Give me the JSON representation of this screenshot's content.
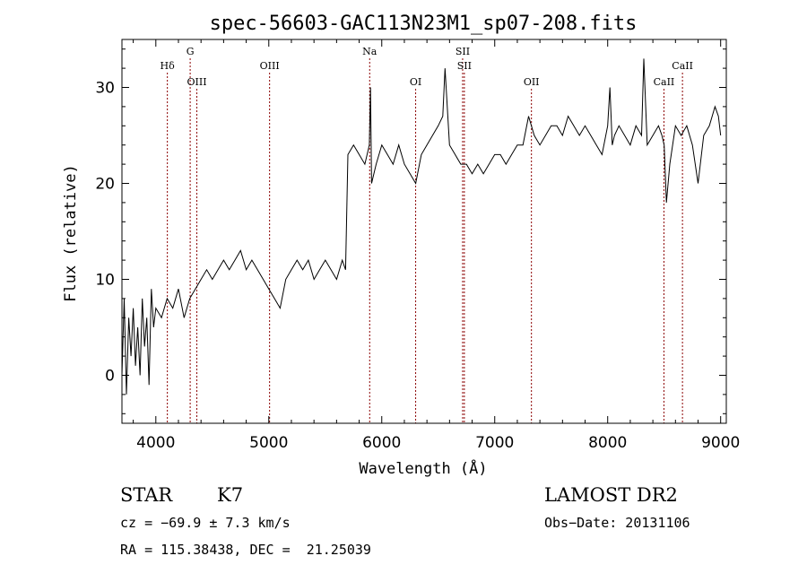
{
  "chart_data": {
    "type": "line",
    "title": "spec-56603-GAC113N23M1_sp07-208.fits",
    "xlabel": "Wavelength (Å)",
    "ylabel": "Flux (relative)",
    "xlim": [
      3700,
      9050
    ],
    "ylim": [
      -5,
      35
    ],
    "xticks": [
      4000,
      5000,
      6000,
      7000,
      8000,
      9000
    ],
    "yticks": [
      0,
      10,
      20,
      30
    ],
    "grid": false,
    "line_color": "#000000",
    "marker_color": "#8b0000",
    "series": [
      {
        "values_x": [
          3700,
          3720,
          3740,
          3760,
          3780,
          3800,
          3820,
          3840,
          3860,
          3880,
          3900,
          3920,
          3940,
          3960,
          3980,
          4000,
          4050,
          4100,
          4150,
          4200,
          4250,
          4300,
          4350,
          4400,
          4450,
          4500,
          4550,
          4600,
          4650,
          4700,
          4750,
          4800,
          4850,
          4900,
          4950,
          5000,
          5050,
          5100,
          5150,
          5200,
          5250,
          5300,
          5350,
          5400,
          5450,
          5500,
          5550,
          5600,
          5650,
          5680,
          5700,
          5750,
          5800,
          5850,
          5890,
          5900,
          5910,
          5950,
          6000,
          6050,
          6100,
          6150,
          6200,
          6250,
          6300,
          6350,
          6400,
          6450,
          6500,
          6540,
          6560,
          6580,
          6600,
          6650,
          6700,
          6750,
          6800,
          6850,
          6900,
          6950,
          7000,
          7050,
          7100,
          7150,
          7200,
          7250,
          7300,
          7350,
          7400,
          7450,
          7500,
          7550,
          7600,
          7650,
          7700,
          7750,
          7800,
          7850,
          7900,
          7950,
          8000,
          8020,
          8040,
          8060,
          8100,
          8150,
          8200,
          8250,
          8300,
          8320,
          8350,
          8400,
          8450,
          8480,
          8500,
          8520,
          8550,
          8600,
          8650,
          8700,
          8750,
          8800,
          8850,
          8900,
          8950,
          8980,
          9000
        ],
        "values_y": [
          0,
          8,
          -2,
          6,
          2,
          7,
          1,
          5,
          0,
          8,
          3,
          6,
          -1,
          9,
          5,
          7,
          6,
          8,
          7,
          9,
          6,
          8,
          9,
          10,
          11,
          10,
          11,
          12,
          11,
          12,
          13,
          11,
          12,
          11,
          10,
          9,
          8,
          7,
          10,
          11,
          12,
          11,
          12,
          10,
          11,
          12,
          11,
          10,
          12,
          11,
          23,
          24,
          23,
          22,
          24,
          30,
          20,
          22,
          24,
          23,
          22,
          24,
          22,
          21,
          20,
          23,
          24,
          25,
          26,
          27,
          32,
          28,
          24,
          23,
          22,
          22,
          21,
          22,
          21,
          22,
          23,
          23,
          22,
          23,
          24,
          24,
          27,
          25,
          24,
          25,
          26,
          26,
          25,
          27,
          26,
          25,
          26,
          25,
          24,
          23,
          26,
          30,
          24,
          25,
          26,
          25,
          24,
          26,
          25,
          33,
          24,
          25,
          26,
          25,
          24,
          18,
          22,
          26,
          25,
          26,
          24,
          20,
          25,
          26,
          28,
          27,
          25
        ],
        "display_range": [
          -5,
          35
        ]
      }
    ],
    "line_markers": [
      {
        "label": "Hδ",
        "wavelength": 4102,
        "row": 2
      },
      {
        "label": "G",
        "wavelength": 4304,
        "row": 1
      },
      {
        "label": "OIII",
        "wavelength": 4363,
        "row": 3
      },
      {
        "label": "OIII",
        "wavelength": 5007,
        "row": 2
      },
      {
        "label": "Na",
        "wavelength": 5893,
        "row": 1
      },
      {
        "label": "OI",
        "wavelength": 6300,
        "row": 3
      },
      {
        "label": "SII",
        "wavelength": 6716,
        "row": 1
      },
      {
        "label": "SII",
        "wavelength": 6731,
        "row": 2
      },
      {
        "label": "OII",
        "wavelength": 7325,
        "row": 3
      },
      {
        "label": "CaII",
        "wavelength": 8498,
        "row": 3
      },
      {
        "label": "CaII",
        "wavelength": 8662,
        "row": 2
      }
    ]
  },
  "info": {
    "object_class": "STAR",
    "subclass": "K7",
    "cz": "cz = −69.9 ± 7.3 km/s",
    "coords": "RA = 115.38438, DEC =  21.25039",
    "survey": "LAMOST DR2",
    "obs_date": "Obs−Date: 20131106"
  }
}
